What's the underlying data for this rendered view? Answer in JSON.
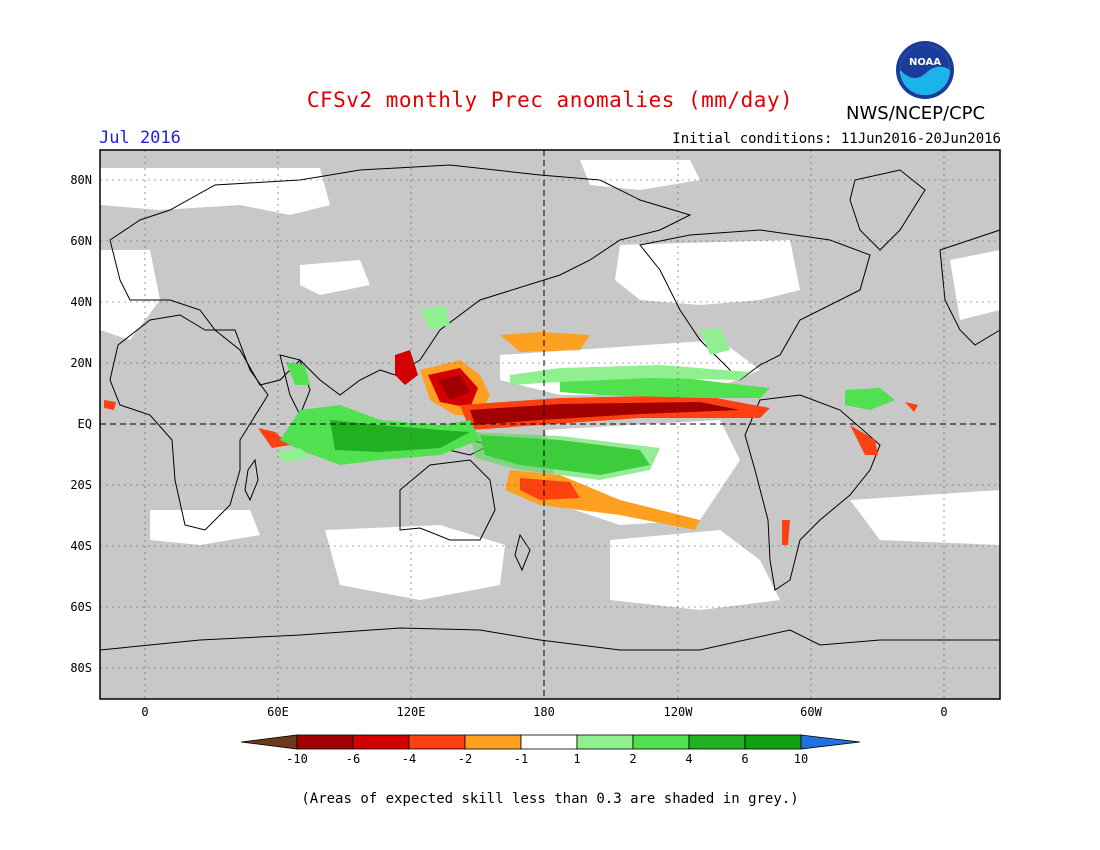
{
  "header": {
    "title": "CFSv2 monthly Prec anomalies (mm/day)",
    "agency": "NWS/NCEP/CPC",
    "logo_text": "NOAA",
    "month": "Jul 2016",
    "initial_conditions": "Initial conditions: 11Jun2016-20Jun2016"
  },
  "map": {
    "lat_labels": [
      "80N",
      "60N",
      "40N",
      "20N",
      "EQ",
      "20S",
      "40S",
      "60S",
      "80S"
    ],
    "lon_labels": [
      "0",
      "60E",
      "120E",
      "180",
      "120W",
      "60W",
      "0"
    ],
    "grey_meaning": "skill < 0.3"
  },
  "colorbar": {
    "labels": [
      "-10",
      "-6",
      "-4",
      "-2",
      "-1",
      "1",
      "2",
      "4",
      "6",
      "10"
    ],
    "colors": {
      "lt_m10": "#6b3a1e",
      "m10_m6": "#a00000",
      "m6_m4": "#d40000",
      "m4_m2": "#ff4010",
      "m2_m1": "#ffa020",
      "m1_1": "#ffffff",
      "1_2": "#90f090",
      "2_4": "#50e050",
      "4_6": "#20b020",
      "6_10": "#10a010",
      "gt_10": "#2070e0"
    }
  },
  "footnote": "(Areas of expected skill less than 0.3 are shaded in grey.)"
}
